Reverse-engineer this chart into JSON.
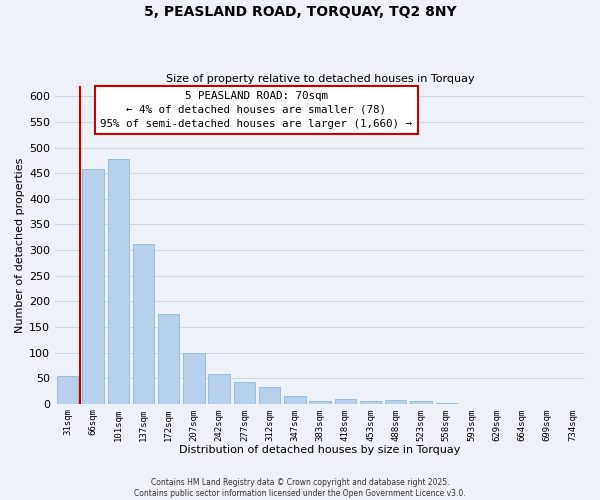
{
  "title": "5, PEASLAND ROAD, TORQUAY, TQ2 8NY",
  "subtitle": "Size of property relative to detached houses in Torquay",
  "xlabel": "Distribution of detached houses by size in Torquay",
  "ylabel": "Number of detached properties",
  "bar_color": "#b8d0ea",
  "bar_edge_color": "#90b8d8",
  "bin_labels": [
    "31sqm",
    "66sqm",
    "101sqm",
    "137sqm",
    "172sqm",
    "207sqm",
    "242sqm",
    "277sqm",
    "312sqm",
    "347sqm",
    "383sqm",
    "418sqm",
    "453sqm",
    "488sqm",
    "523sqm",
    "558sqm",
    "593sqm",
    "629sqm",
    "664sqm",
    "699sqm",
    "734sqm"
  ],
  "bar_heights": [
    55,
    458,
    478,
    312,
    175,
    100,
    59,
    42,
    32,
    15,
    6,
    9,
    5,
    7,
    5,
    2,
    0,
    0,
    0,
    0,
    0
  ],
  "ylim": [
    0,
    620
  ],
  "yticks": [
    0,
    50,
    100,
    150,
    200,
    250,
    300,
    350,
    400,
    450,
    500,
    550,
    600
  ],
  "property_line_x": 0.5,
  "property_line_color": "#cc0000",
  "annotation_title": "5 PEASLAND ROAD: 70sqm",
  "annotation_line1": "← 4% of detached houses are smaller (78)",
  "annotation_line2": "95% of semi-detached houses are larger (1,660) →",
  "annotation_box_color": "#ffffff",
  "annotation_box_edge": "#cc0000",
  "grid_color": "#d0d8e8",
  "background_color": "#eef2f8",
  "footer_line1": "Contains HM Land Registry data © Crown copyright and database right 2025.",
  "footer_line2": "Contains public sector information licensed under the Open Government Licence v3.0."
}
